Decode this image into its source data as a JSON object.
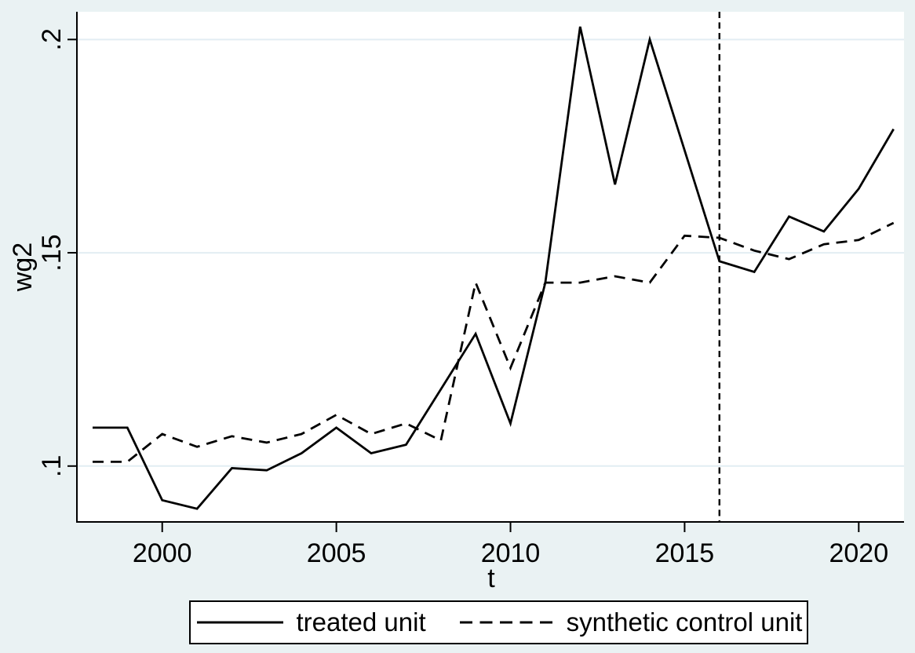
{
  "figure": {
    "background": "#eaf2f3",
    "plot_background": "#ffffff",
    "grid_color": "#e2edf3",
    "axis_color": "#000000",
    "series_color": "#000000"
  },
  "chart_data": {
    "type": "line",
    "title": "",
    "xlabel": "t",
    "ylabel": "wg2",
    "x": [
      1998,
      1999,
      2000,
      2001,
      2002,
      2003,
      2004,
      2005,
      2006,
      2007,
      2008,
      2009,
      2010,
      2011,
      2012,
      2013,
      2014,
      2015,
      2016,
      2017,
      2018,
      2019,
      2020,
      2021
    ],
    "series": [
      {
        "name": "treated unit",
        "style": "solid",
        "color": "#000000",
        "values": [
          0.109,
          0.109,
          0.092,
          0.09,
          0.0995,
          0.099,
          0.103,
          0.109,
          0.103,
          0.105,
          0.118,
          0.131,
          0.11,
          0.143,
          0.203,
          0.166,
          0.2,
          0.174,
          0.148,
          0.1455,
          0.1585,
          0.155,
          0.165,
          0.179
        ]
      },
      {
        "name": "synthetic control unit",
        "style": "dashed",
        "color": "#000000",
        "values": [
          0.101,
          0.101,
          0.1075,
          0.1045,
          0.107,
          0.1055,
          0.1075,
          0.112,
          0.1075,
          0.11,
          0.106,
          0.143,
          0.123,
          0.143,
          0.143,
          0.1445,
          0.143,
          0.154,
          0.1535,
          0.1505,
          0.1485,
          0.152,
          0.153,
          0.157
        ]
      }
    ],
    "treatment_line": {
      "x": 2016,
      "style": "dashed",
      "color": "#000000"
    },
    "x_ticks": [
      2000,
      2005,
      2010,
      2015,
      2020
    ],
    "x_tick_labels": [
      "2000",
      "2005",
      "2010",
      "2015",
      "2020"
    ],
    "y_ticks": [
      0.1,
      0.15,
      0.2
    ],
    "y_tick_labels": [
      ".1",
      ".15",
      ".2"
    ],
    "xlim": [
      1997.55,
      2021.3
    ],
    "ylim": [
      0.0869,
      0.2065
    ],
    "grid": "horizontal",
    "legend_position": "bottom"
  }
}
